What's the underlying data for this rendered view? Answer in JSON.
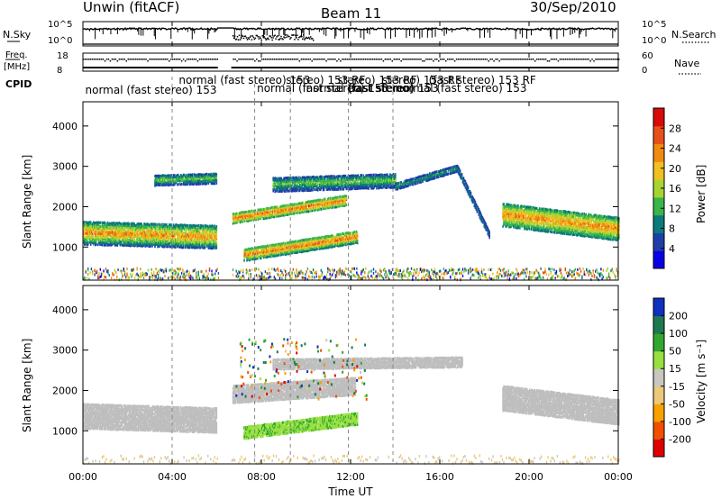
{
  "header": {
    "station": "Unwin (fitACF)",
    "beam": "Beam 11",
    "date": "30/Sep/2010"
  },
  "strips": {
    "nsky_label": "N.Sky",
    "nsky_ticks": [
      "10^5",
      "10^0"
    ],
    "nsearch_label": "N.Search",
    "nsearch_ticks": [
      "10^5",
      "10^0"
    ],
    "freq_label_1": "Freq.",
    "freq_label_2": "[MHz]",
    "freq_ticks": [
      "18",
      "8"
    ],
    "nave_label": "Nave",
    "nave_ticks": [
      "60",
      "0"
    ],
    "cpid_label": "CPID",
    "cpid_entries": [
      {
        "text": "normal (fast stereo) 153",
        "hour": 0.1,
        "row": 2
      },
      {
        "text": "normal (fast stereo) 153",
        "hour": 4.3,
        "row": 0
      },
      {
        "text": "normal (fast stereo) 153",
        "hour": 7.8,
        "row": 1
      },
      {
        "text": "stereo) 153 RF",
        "hour": 9.1,
        "row": 0
      },
      {
        "text": "normal (fast stereo)",
        "hour": 10.0,
        "row": 1
      },
      {
        "text": "stereo) 153 RF",
        "hour": 11.4,
        "row": 0
      },
      {
        "text": "(fast stereo) 153",
        "hour": 11.9,
        "row": 1
      },
      {
        "text": "stereo) 153 RF",
        "hour": 13.4,
        "row": 0
      },
      {
        "text": "normal (fast stereo) 153",
        "hour": 14.0,
        "row": 1
      },
      {
        "text": "(fast stereo) 153 RF",
        "hour": 15.5,
        "row": 0
      }
    ]
  },
  "x_axis": {
    "title": "Time UT",
    "tick_labels": [
      "00:00",
      "04:00",
      "08:00",
      "12:00",
      "16:00",
      "20:00",
      "00:00"
    ],
    "hours": [
      0,
      4,
      8,
      12,
      16,
      20,
      24
    ]
  },
  "panels": {
    "y_title": "Slant Range [km]",
    "y_tick_labels": [
      "1000",
      "2000",
      "3000",
      "4000"
    ],
    "power_colorbar_title": "Power [dB]",
    "power_colorbar_ticks": [
      "4",
      "8",
      "12",
      "16",
      "20",
      "24",
      "28"
    ],
    "velocity_colorbar_title": "Velocity [m s⁻¹]",
    "velocity_colorbar_ticks": [
      "-200",
      "-100",
      "-50",
      "-15",
      "15",
      "50",
      "100",
      "200"
    ]
  },
  "colors": {
    "power_scale": [
      "#0a00e6",
      "#1f3fa8",
      "#0c7a7a",
      "#39b54a",
      "#a8d432",
      "#f0c020",
      "#f28a10",
      "#e8501a",
      "#d80a0a"
    ],
    "velocity_scale": [
      "#e00000",
      "#f05000",
      "#f8a000",
      "#ecc878",
      "#c8c8c0",
      "#98e040",
      "#30a830",
      "#207850",
      "#1030c0"
    ],
    "ground_scatter": "#bebebe"
  },
  "chart_data": {
    "type": "heatmap",
    "x_range_hours": [
      0,
      24
    ],
    "y_range_km": [
      180,
      4600
    ],
    "data_gap_hours": [
      6.05,
      6.65
    ],
    "power_range_db": [
      0,
      32
    ],
    "velocity_range": [
      -250,
      250
    ],
    "dashed_marker_hours": [
      4,
      7.7,
      9.3,
      11.9,
      13.9
    ],
    "power_bands": [
      {
        "t0": 0.0,
        "t1": 6.0,
        "r0": 1350,
        "r1": 1250,
        "w": 600,
        "pmin": 6,
        "pmax": 26
      },
      {
        "t0": 3.2,
        "t1": 6.0,
        "r0": 2650,
        "r1": 2700,
        "w": 280,
        "pmin": 4,
        "pmax": 16
      },
      {
        "t0": 6.7,
        "t1": 11.8,
        "r0": 1700,
        "r1": 2150,
        "w": 260,
        "pmin": 10,
        "pmax": 28
      },
      {
        "t0": 7.2,
        "t1": 12.3,
        "r0": 800,
        "r1": 1250,
        "w": 320,
        "pmin": 8,
        "pmax": 28
      },
      {
        "t0": 8.5,
        "t1": 14.0,
        "r0": 2550,
        "r1": 2650,
        "w": 380,
        "pmin": 4,
        "pmax": 16
      },
      {
        "t0": 14.0,
        "t1": 16.8,
        "r0": 2500,
        "r1": 2950,
        "w": 180,
        "pmin": 4,
        "pmax": 12
      },
      {
        "t0": 16.8,
        "t1": 18.2,
        "r0": 2900,
        "r1": 1300,
        "w": 160,
        "pmin": 4,
        "pmax": 10
      },
      {
        "t0": 18.8,
        "t1": 24.0,
        "r0": 1800,
        "r1": 1450,
        "w": 600,
        "pmin": 8,
        "pmax": 26
      }
    ],
    "velocity_bands": [
      {
        "t0": 0.0,
        "t1": 6.0,
        "r0": 1350,
        "r1": 1250,
        "w": 620,
        "vel": 0
      },
      {
        "t0": 6.7,
        "t1": 12.2,
        "r0": 1900,
        "r1": 2100,
        "w": 450,
        "vel": 0
      },
      {
        "t0": 7.2,
        "t1": 12.3,
        "r0": 950,
        "r1": 1300,
        "w": 320,
        "vel": 40
      },
      {
        "t0": 8.5,
        "t1": 17.0,
        "r0": 2650,
        "r1": 2700,
        "w": 280,
        "vel": 0
      },
      {
        "t0": 18.8,
        "t1": 24.0,
        "r0": 1800,
        "r1": 1450,
        "w": 620,
        "vel": 0
      }
    ]
  }
}
